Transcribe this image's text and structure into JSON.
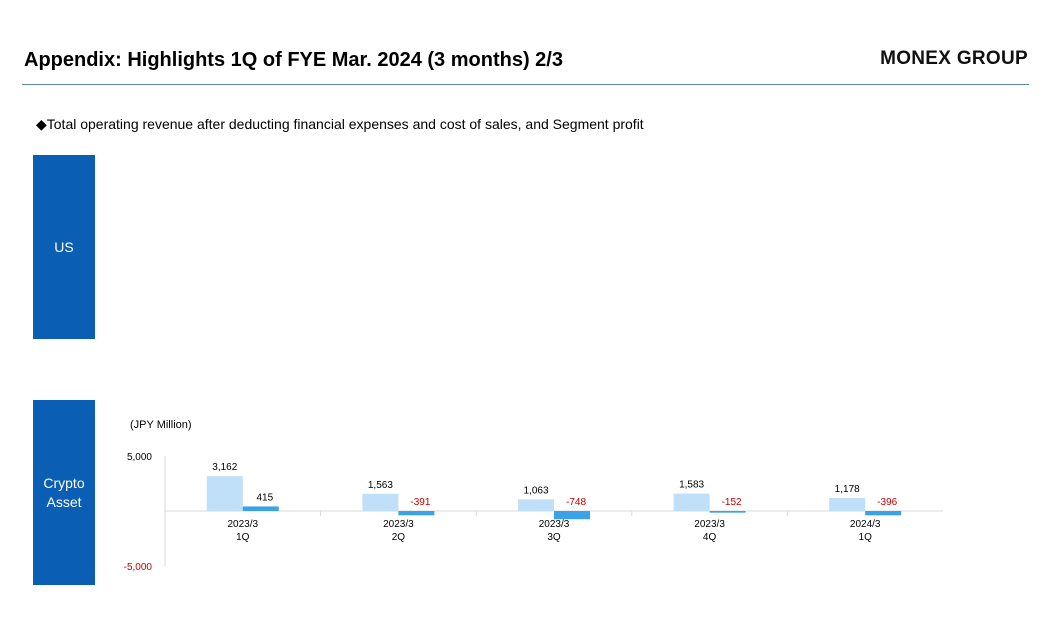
{
  "header": {
    "title": "Appendix: Highlights 1Q of FYE Mar. 2024 (3 months) 2/3",
    "brand": "MONEX GROUP"
  },
  "subtitle": "◆Total operating revenue after deducting financial expenses and cost of sales, and Segment profit",
  "segments": {
    "us": "US",
    "crypto": "Crypto Asset"
  },
  "chart_data": {
    "type": "bar",
    "unit_label": "(JPY Million)",
    "categories": [
      [
        "2023/3",
        "1Q"
      ],
      [
        "2023/3",
        "2Q"
      ],
      [
        "2023/3",
        "3Q"
      ],
      [
        "2023/3",
        "4Q"
      ],
      [
        "2024/3",
        "1Q"
      ]
    ],
    "series": [
      {
        "values": [
          3162,
          1563,
          1063,
          1583,
          1178
        ],
        "color": "#bfe0f8"
      },
      {
        "values": [
          415,
          -391,
          -748,
          -152,
          -396
        ],
        "color": "#3ba2e6"
      }
    ],
    "data_labels": [
      [
        "3,162",
        "1,563",
        "1,063",
        "1,583",
        "1,178"
      ],
      [
        "415",
        "-391",
        "-748",
        "-152",
        "-396"
      ]
    ],
    "negative_label_color": "#c00000",
    "yticks": [
      {
        "value": 5000,
        "label": "5,000"
      },
      {
        "value": -5000,
        "label": "-5,000"
      }
    ],
    "ylim": [
      -5000,
      5000
    ],
    "grid": false
  }
}
